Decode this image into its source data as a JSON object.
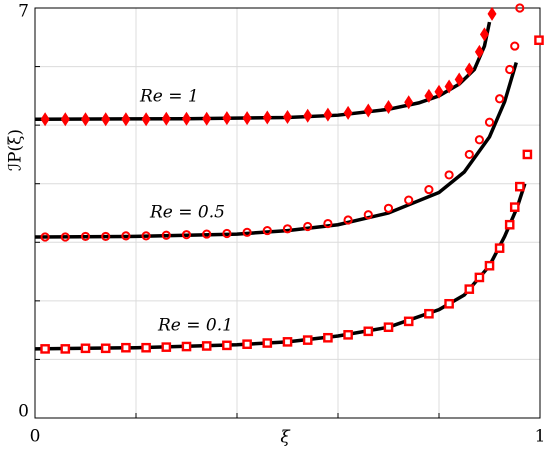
{
  "chart_data": {
    "type": "line-scatter",
    "x_label": "ξ",
    "y_label": "ℐP(ξ)",
    "xlim": [
      0,
      1
    ],
    "ylim": [
      0,
      7
    ],
    "xticks": [
      0,
      {
        "value": 0.2,
        "label": null
      },
      {
        "value": 0.4,
        "label": null
      },
      {
        "value": 0.6,
        "label": null
      },
      {
        "value": 0.8,
        "label": null
      },
      1
    ],
    "yticks": [
      0,
      {
        "value": 1,
        "label": null
      },
      {
        "value": 2,
        "label": null
      },
      {
        "value": 3,
        "label": null
      },
      {
        "value": 4,
        "label": null
      },
      {
        "value": 5,
        "label": null
      },
      {
        "value": 6,
        "label": null
      },
      7
    ],
    "grid": true,
    "line_color": "#000000",
    "series": [
      {
        "name": "Re = 1",
        "color": "#ff0000",
        "marker": "diamond",
        "x": [
          0.02,
          0.06,
          0.1,
          0.14,
          0.18,
          0.22,
          0.26,
          0.3,
          0.34,
          0.38,
          0.42,
          0.46,
          0.5,
          0.54,
          0.58,
          0.62,
          0.66,
          0.7,
          0.74,
          0.78,
          0.8,
          0.82,
          0.84,
          0.86,
          0.88,
          0.89,
          0.905
        ],
        "values": [
          5.1,
          5.1,
          5.1,
          5.1,
          5.1,
          5.1,
          5.11,
          5.11,
          5.11,
          5.12,
          5.12,
          5.13,
          5.14,
          5.16,
          5.18,
          5.21,
          5.25,
          5.31,
          5.39,
          5.5,
          5.57,
          5.66,
          5.78,
          5.95,
          6.25,
          6.55,
          6.9
        ],
        "line_x": [
          0,
          0.3,
          0.5,
          0.6,
          0.7,
          0.76,
          0.8,
          0.84,
          0.87,
          0.89,
          0.9
        ],
        "line_values": [
          5.1,
          5.11,
          5.13,
          5.17,
          5.27,
          5.38,
          5.5,
          5.7,
          5.95,
          6.35,
          6.76
        ]
      },
      {
        "name": "Re = 0.5",
        "color": "#ff0000",
        "marker": "circle",
        "x": [
          0.02,
          0.06,
          0.1,
          0.14,
          0.18,
          0.22,
          0.26,
          0.3,
          0.34,
          0.38,
          0.42,
          0.46,
          0.5,
          0.54,
          0.58,
          0.62,
          0.66,
          0.7,
          0.74,
          0.78,
          0.82,
          0.86,
          0.88,
          0.9,
          0.92,
          0.94,
          0.95,
          0.96
        ],
        "values": [
          3.09,
          3.09,
          3.1,
          3.1,
          3.11,
          3.11,
          3.12,
          3.13,
          3.14,
          3.15,
          3.17,
          3.2,
          3.23,
          3.27,
          3.32,
          3.38,
          3.47,
          3.58,
          3.72,
          3.9,
          4.15,
          4.5,
          4.75,
          5.05,
          5.45,
          5.95,
          6.35,
          7
        ],
        "line_x": [
          0,
          0.2,
          0.4,
          0.5,
          0.6,
          0.7,
          0.8,
          0.85,
          0.9,
          0.93,
          0.953
        ],
        "line_values": [
          3.09,
          3.1,
          3.14,
          3.2,
          3.3,
          3.5,
          3.85,
          4.2,
          4.8,
          5.4,
          6.07
        ]
      },
      {
        "name": "Re = 0.1",
        "color": "#ff0000",
        "marker": "square",
        "x": [
          0.02,
          0.06,
          0.1,
          0.14,
          0.18,
          0.22,
          0.26,
          0.3,
          0.34,
          0.38,
          0.42,
          0.46,
          0.5,
          0.54,
          0.58,
          0.62,
          0.66,
          0.7,
          0.74,
          0.78,
          0.82,
          0.86,
          0.88,
          0.9,
          0.92,
          0.94,
          0.95,
          0.96,
          0.975,
          0.998
        ],
        "values": [
          1.18,
          1.18,
          1.19,
          1.19,
          1.2,
          1.2,
          1.21,
          1.22,
          1.23,
          1.24,
          1.26,
          1.28,
          1.3,
          1.33,
          1.37,
          1.42,
          1.48,
          1.55,
          1.65,
          1.78,
          1.95,
          2.2,
          2.4,
          2.6,
          2.9,
          3.3,
          3.6,
          3.95,
          4.5,
          6.45
        ],
        "line_x": [
          0,
          0.2,
          0.4,
          0.5,
          0.6,
          0.7,
          0.8,
          0.85,
          0.9,
          0.93,
          0.955,
          0.97
        ],
        "line_values": [
          1.18,
          1.2,
          1.25,
          1.3,
          1.4,
          1.55,
          1.85,
          2.1,
          2.6,
          3.1,
          3.6,
          4.0
        ]
      }
    ]
  }
}
